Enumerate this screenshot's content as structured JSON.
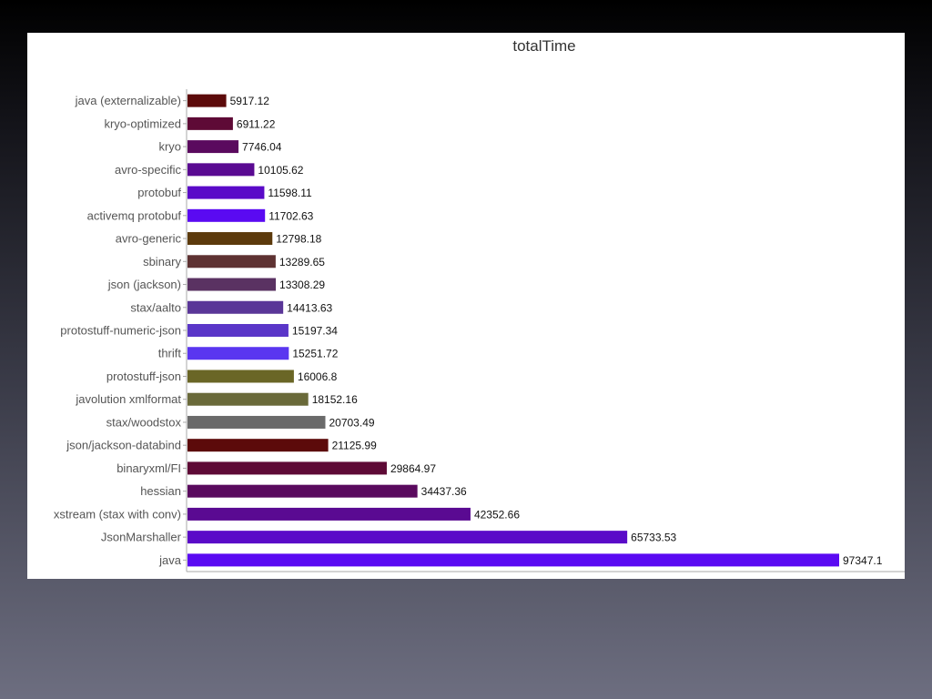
{
  "chart_data": {
    "type": "bar",
    "orientation": "horizontal",
    "title": "totalTime",
    "xlabel": "",
    "ylabel": "",
    "grid": false,
    "legend": "none",
    "xlim": [
      0,
      97347.1
    ],
    "categories": [
      "java (externalizable)",
      "kryo-optimized",
      "kryo",
      "avro-specific",
      "protobuf",
      "activemq protobuf",
      "avro-generic",
      "sbinary",
      "json (jackson)",
      "stax/aalto",
      "protostuff-numeric-json",
      "thrift",
      "protostuff-json",
      "javolution xmlformat",
      "stax/woodstox",
      "json/jackson-databind",
      "binaryxml/FI",
      "hessian",
      "xstream (stax with conv)",
      "JsonMarshaller",
      "java"
    ],
    "values": [
      5917.12,
      6911.22,
      7746.04,
      10105.62,
      11598.11,
      11702.63,
      12798.18,
      13289.65,
      13308.29,
      14413.63,
      15197.34,
      15251.72,
      16006.8,
      18152.16,
      20703.49,
      21125.99,
      29864.97,
      34437.36,
      42352.66,
      65733.53,
      97347.1
    ],
    "value_labels": [
      "5917.12",
      "6911.22",
      "7746.04",
      "10105.62",
      "11598.11",
      "11702.63",
      "12798.18",
      "13289.65",
      "13308.29",
      "14413.63",
      "15197.34",
      "15251.72",
      "16006.8",
      "18152.16",
      "20703.49",
      "21125.99",
      "29864.97",
      "34437.36",
      "42352.66",
      "65733.53",
      "97347.1"
    ],
    "colors": [
      "#5c0a0a",
      "#5e0a36",
      "#5a0a5e",
      "#5a0a92",
      "#5a0ac8",
      "#5a0af2",
      "#5c3a0c",
      "#5e3232",
      "#5a3262",
      "#5a3698",
      "#5a36c8",
      "#5a36f0",
      "#6a6626",
      "#6a6a3a",
      "#6a6a6a",
      "#5c0a0a",
      "#5e0a36",
      "#5a0a5e",
      "#5a0a92",
      "#5a0ac8",
      "#5a0af2"
    ]
  }
}
